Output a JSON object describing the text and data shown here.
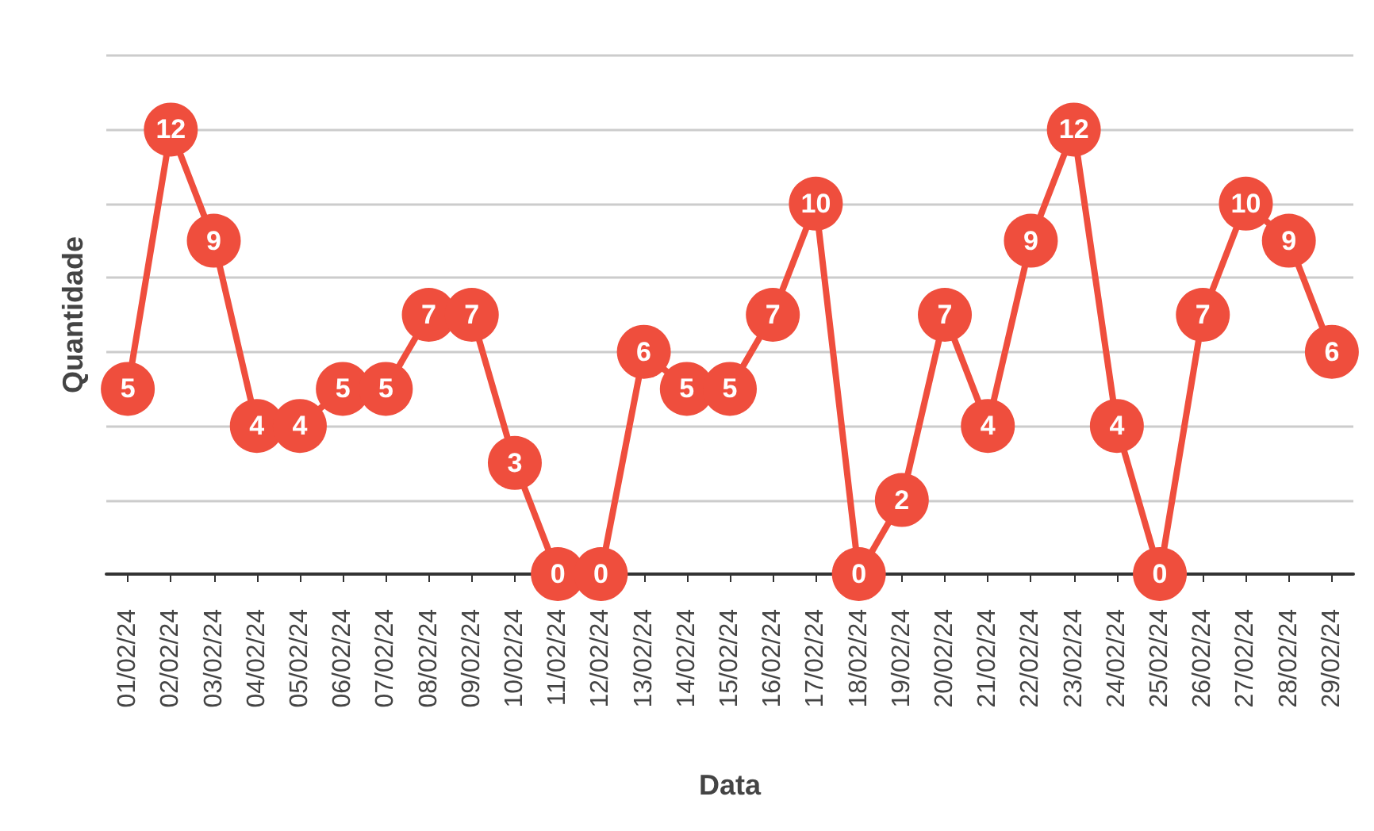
{
  "chart_data": {
    "type": "line",
    "xlabel": "Data",
    "ylabel": "Quantidade",
    "categories": [
      "01/02/24",
      "02/02/24",
      "03/02/24",
      "04/02/24",
      "05/02/24",
      "06/02/24",
      "07/02/24",
      "08/02/24",
      "09/02/24",
      "10/02/24",
      "11/02/24",
      "12/02/24",
      "13/02/24",
      "14/02/24",
      "15/02/24",
      "16/02/24",
      "17/02/24",
      "18/02/24",
      "19/02/24",
      "20/02/24",
      "21/02/24",
      "22/02/24",
      "23/02/24",
      "24/02/24",
      "25/02/24",
      "26/02/24",
      "27/02/24",
      "28/02/24",
      "29/02/24"
    ],
    "series": [
      {
        "color": "#ef4e3d",
        "values": [
          5,
          12,
          9,
          4,
          4,
          5,
          5,
          7,
          7,
          3,
          0,
          0,
          6,
          5,
          5,
          7,
          10,
          0,
          2,
          7,
          4,
          9,
          12,
          4,
          0,
          7,
          10,
          9,
          6
        ]
      }
    ],
    "ylim": [
      0,
      14
    ],
    "yticks": [
      {
        "value": 0,
        "label": null
      },
      {
        "value": 2,
        "label": null
      },
      {
        "value": 4,
        "label": null
      },
      {
        "value": 6,
        "label": null
      },
      {
        "value": 8,
        "label": null
      },
      {
        "value": 10,
        "label": null
      },
      {
        "value": 12,
        "label": null
      },
      {
        "value": 14,
        "label": null
      }
    ],
    "tick_labels": "x",
    "grid": "y",
    "marker": "circle",
    "line_style": "solid",
    "data_labels": true
  }
}
